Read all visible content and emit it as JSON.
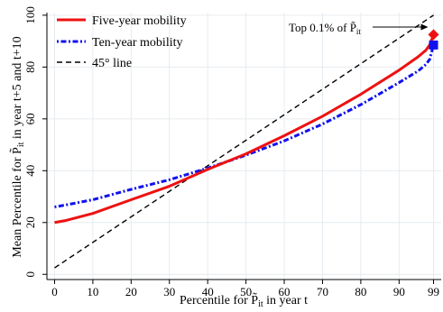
{
  "chart_data": {
    "type": "line",
    "xlabel": "Percentile for P̃",
    "xlabel_sub": "it",
    "xlabel_tail": " in year t",
    "ylabel": "Mean Percentile for P̃",
    "ylabel_sub": "it",
    "ylabel_tail": " in year t+5 and t+10",
    "xlim": [
      -2,
      101
    ],
    "ylim": [
      -2,
      101
    ],
    "x_ticks": [
      0,
      10,
      20,
      30,
      40,
      50,
      60,
      70,
      80,
      90,
      99
    ],
    "y_ticks": [
      0,
      20,
      40,
      60,
      80,
      100
    ],
    "grid": true,
    "legend_position": "top-left",
    "series": [
      {
        "name": "Five-year mobility",
        "color": "#ee1111",
        "style": "solid",
        "x": [
          0,
          3,
          10,
          20,
          30,
          40,
          50,
          60,
          70,
          80,
          90,
          95,
          97,
          98,
          99
        ],
        "y": [
          20,
          20.8,
          23.5,
          28.8,
          34.0,
          40.5,
          46.5,
          53.5,
          61.0,
          69.5,
          78.8,
          84.0,
          86.5,
          88.5,
          92.5
        ]
      },
      {
        "name": "Ten-year mobility",
        "color": "#1111ee",
        "style": "dash-dot",
        "x": [
          0,
          3,
          10,
          20,
          30,
          40,
          50,
          60,
          70,
          80,
          90,
          95,
          97,
          98,
          99
        ],
        "y": [
          26,
          26.8,
          28.8,
          32.8,
          36.5,
          41.0,
          46.0,
          51.5,
          58.0,
          65.5,
          74.0,
          78.5,
          81.0,
          83.0,
          88.5
        ]
      },
      {
        "name": "45° line",
        "color": "#000000",
        "style": "dashed",
        "x": [
          0,
          99
        ],
        "y": [
          2.5,
          100
        ]
      }
    ],
    "markers": [
      {
        "series": "Five-year mobility",
        "shape": "diamond",
        "x": 99,
        "y": 92.5,
        "color": "#ee1111"
      },
      {
        "series": "Ten-year mobility",
        "shape": "square",
        "x": 99,
        "y": 88.5,
        "color": "#1111ee"
      }
    ],
    "annotation": {
      "text_main": "Top 0.1% of P̃",
      "text_sub": "it",
      "target_x": 99,
      "target_y": 92.5
    }
  }
}
